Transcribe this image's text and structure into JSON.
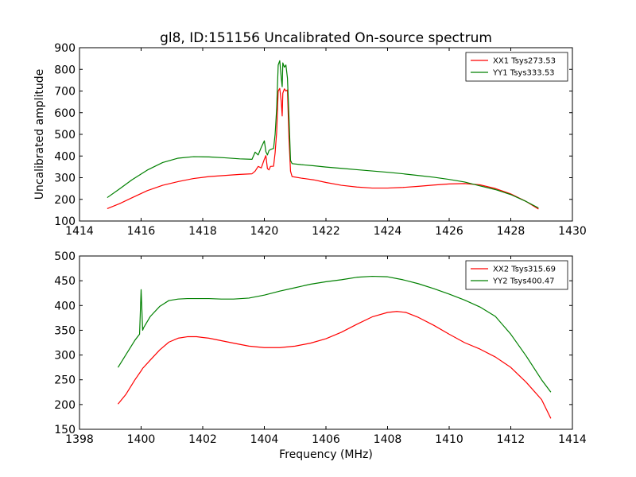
{
  "chart_data": [
    {
      "type": "line",
      "title": "gl8, ID:151156 Uncalibrated On-source spectrum",
      "xlabel": "",
      "ylabel": "Uncalibrated amplitude",
      "xlim": [
        1414,
        1430
      ],
      "ylim": [
        100,
        900
      ],
      "xticks": [
        1414,
        1416,
        1418,
        1420,
        1422,
        1424,
        1426,
        1428,
        1430
      ],
      "yticks": [
        100,
        200,
        300,
        400,
        500,
        600,
        700,
        800,
        900
      ],
      "grid": false,
      "legend_position": "top-right",
      "series": [
        {
          "name": "XX1 Tsys273.53",
          "color": "#ff0000",
          "x": [
            1414.9,
            1415.3,
            1415.7,
            1416.2,
            1416.7,
            1417.2,
            1417.7,
            1418.2,
            1418.7,
            1419.2,
            1419.6,
            1419.7,
            1419.8,
            1419.9,
            1420.0,
            1420.05,
            1420.1,
            1420.15,
            1420.2,
            1420.3,
            1420.35,
            1420.4,
            1420.45,
            1420.5,
            1420.55,
            1420.58,
            1420.6,
            1420.65,
            1420.7,
            1420.75,
            1420.8,
            1420.85,
            1420.9,
            1421.2,
            1421.6,
            1422.0,
            1422.5,
            1423.0,
            1423.5,
            1424.0,
            1424.5,
            1425.0,
            1425.5,
            1426.0,
            1426.5,
            1427.0,
            1427.5,
            1428.0,
            1428.5,
            1428.9
          ],
          "y": [
            157,
            180,
            207,
            240,
            265,
            282,
            296,
            305,
            310,
            315,
            318,
            330,
            352,
            345,
            385,
            402,
            342,
            336,
            352,
            353,
            415,
            510,
            700,
            712,
            650,
            585,
            690,
            710,
            700,
            705,
            480,
            330,
            305,
            298,
            290,
            278,
            265,
            257,
            252,
            252,
            255,
            260,
            266,
            271,
            273,
            267,
            250,
            225,
            190,
            155
          ]
        },
        {
          "name": "YY1 Tsys333.53",
          "color": "#008000",
          "x": [
            1414.9,
            1415.3,
            1415.7,
            1416.2,
            1416.7,
            1417.2,
            1417.7,
            1418.2,
            1418.7,
            1419.2,
            1419.6,
            1419.7,
            1419.8,
            1419.9,
            1420.0,
            1420.05,
            1420.1,
            1420.15,
            1420.2,
            1420.3,
            1420.35,
            1420.4,
            1420.45,
            1420.5,
            1420.55,
            1420.58,
            1420.6,
            1420.65,
            1420.7,
            1420.75,
            1420.8,
            1420.85,
            1420.9,
            1421.2,
            1421.6,
            1422.0,
            1422.5,
            1423.0,
            1423.5,
            1424.0,
            1424.5,
            1425.0,
            1425.5,
            1426.0,
            1426.5,
            1427.0,
            1427.5,
            1428.0,
            1428.5,
            1428.9
          ],
          "y": [
            208,
            248,
            290,
            335,
            370,
            390,
            397,
            396,
            392,
            387,
            385,
            418,
            405,
            440,
            470,
            420,
            405,
            425,
            430,
            435,
            500,
            620,
            820,
            840,
            760,
            720,
            830,
            810,
            820,
            760,
            580,
            380,
            365,
            360,
            355,
            349,
            343,
            337,
            331,
            325,
            318,
            310,
            302,
            292,
            280,
            262,
            245,
            222,
            190,
            160
          ]
        }
      ]
    },
    {
      "type": "line",
      "title": "",
      "xlabel": "Frequency (MHz)",
      "ylabel": "",
      "xlim": [
        1398,
        1414
      ],
      "ylim": [
        150,
        500
      ],
      "xticks": [
        1398,
        1400,
        1402,
        1404,
        1406,
        1408,
        1410,
        1412,
        1414
      ],
      "yticks": [
        150,
        200,
        250,
        300,
        350,
        400,
        450,
        500
      ],
      "grid": false,
      "legend_position": "top-right",
      "series": [
        {
          "name": "XX2 Tsys315.69",
          "color": "#ff0000",
          "x": [
            1399.25,
            1399.5,
            1399.8,
            1400.0,
            1400.05,
            1400.3,
            1400.6,
            1400.9,
            1401.2,
            1401.5,
            1401.8,
            1402.2,
            1402.6,
            1403.0,
            1403.5,
            1404.0,
            1404.5,
            1405.0,
            1405.5,
            1406.0,
            1406.5,
            1407.0,
            1407.5,
            1408.0,
            1408.3,
            1408.6,
            1409.0,
            1409.5,
            1410.0,
            1410.5,
            1411.0,
            1411.5,
            1412.0,
            1412.5,
            1413.0,
            1413.3
          ],
          "y": [
            201,
            220,
            250,
            268,
            273,
            290,
            310,
            326,
            334,
            337,
            337,
            334,
            329,
            324,
            318,
            315,
            315,
            318,
            324,
            333,
            346,
            362,
            377,
            386,
            388,
            386,
            376,
            360,
            342,
            325,
            312,
            296,
            275,
            245,
            210,
            172
          ]
        },
        {
          "name": "YY2 Tsys400.47",
          "color": "#008000",
          "x": [
            1399.25,
            1399.5,
            1399.8,
            1399.95,
            1400.0,
            1400.05,
            1400.08,
            1400.3,
            1400.6,
            1400.9,
            1401.2,
            1401.5,
            1401.8,
            1402.2,
            1402.6,
            1403.0,
            1403.5,
            1404.0,
            1404.5,
            1405.0,
            1405.5,
            1406.0,
            1406.5,
            1407.0,
            1407.5,
            1408.0,
            1408.5,
            1409.0,
            1409.5,
            1410.0,
            1410.5,
            1411.0,
            1411.5,
            1412.0,
            1412.5,
            1413.0,
            1413.3
          ],
          "y": [
            275,
            300,
            330,
            342,
            432,
            350,
            355,
            378,
            398,
            410,
            413,
            414,
            414,
            414,
            413,
            413,
            415,
            421,
            429,
            436,
            443,
            448,
            452,
            457,
            459,
            458,
            452,
            444,
            434,
            423,
            411,
            397,
            378,
            342,
            298,
            250,
            225
          ]
        }
      ]
    }
  ]
}
